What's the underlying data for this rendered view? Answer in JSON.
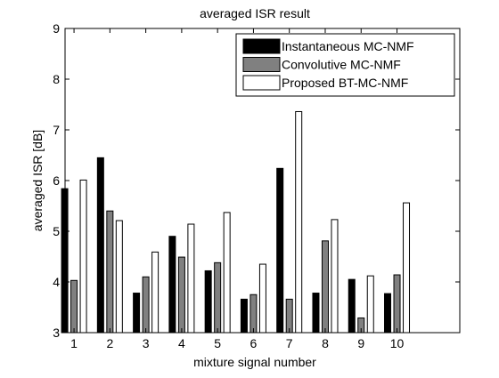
{
  "chart_data": {
    "type": "bar",
    "title": "averaged ISR result",
    "xlabel": "mixture signal number",
    "ylabel": "averaged ISR [dB]",
    "categories": [
      "1",
      "2",
      "3",
      "4",
      "5",
      "6",
      "7",
      "8",
      "9",
      "10"
    ],
    "ylim": [
      3,
      9
    ],
    "yticks": [
      "3",
      "4",
      "5",
      "6",
      "7",
      "8",
      "9"
    ],
    "grid": false,
    "legend_position": "top-right",
    "series": [
      {
        "name": "Instantaneous MC-NMF",
        "color": "#000000",
        "values": [
          5.84,
          6.45,
          3.78,
          4.9,
          4.22,
          3.66,
          6.24,
          3.78,
          4.05,
          3.77
        ]
      },
      {
        "name": "Convolutive MC-NMF",
        "color": "#808080",
        "values": [
          4.03,
          5.4,
          4.1,
          4.49,
          4.38,
          3.75,
          3.66,
          4.81,
          3.29,
          4.14
        ]
      },
      {
        "name": "Proposed BT-MC-NMF",
        "color": "#ffffff",
        "values": [
          6.01,
          5.21,
          4.59,
          5.14,
          5.37,
          4.35,
          7.36,
          5.23,
          4.12,
          5.56
        ]
      }
    ]
  }
}
